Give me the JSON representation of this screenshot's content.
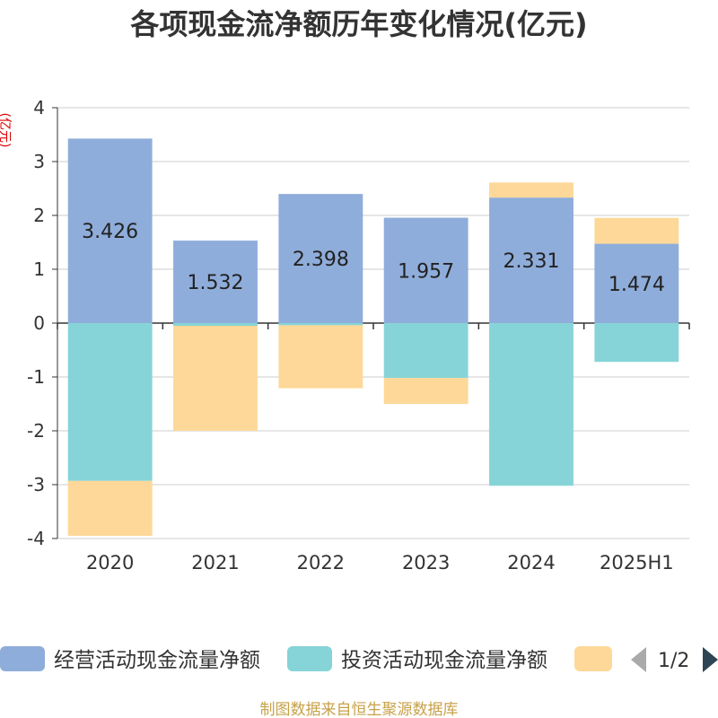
{
  "chart_data": {
    "type": "bar",
    "stacked": true,
    "title": "各项现金流净额历年变化情况(亿元)",
    "ylabel": "(亿元)",
    "xlabel": "",
    "categories": [
      "2020",
      "2021",
      "2022",
      "2023",
      "2024",
      "2025H1"
    ],
    "yticks": [
      4,
      3,
      2,
      1,
      0,
      -1,
      -2,
      -3,
      -4
    ],
    "ylim": [
      -4,
      4
    ],
    "grid": true,
    "legend_position": "bottom",
    "series": [
      {
        "name": "经营活动现金流量净额",
        "color": "#8fadda",
        "values": [
          3.426,
          1.532,
          2.398,
          1.957,
          2.331,
          1.474
        ]
      },
      {
        "name": "投资活动现金流量净额",
        "color": "#86d4d7",
        "values": [
          -2.93,
          -0.05,
          -0.04,
          -1.02,
          -3.02,
          -0.72
        ]
      },
      {
        "color": "#fdd898",
        "values": [
          -1.02,
          -1.95,
          -1.17,
          -0.48,
          0.28,
          0.48
        ]
      }
    ]
  },
  "legend": {
    "page": "1/2",
    "prev_icon": "triangle-left-icon",
    "next_icon": "triangle-right-icon"
  },
  "source_note": "制图数据来自恒生聚源数据库"
}
